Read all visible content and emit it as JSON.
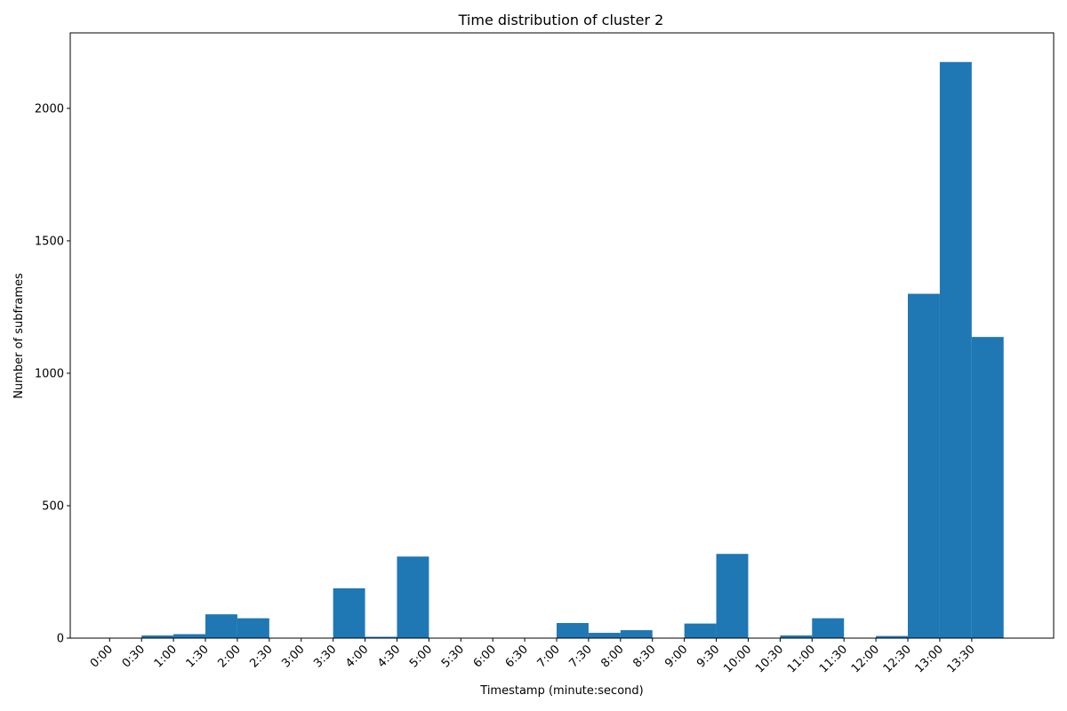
{
  "chart_data": {
    "type": "bar",
    "title": "Time distribution of cluster 2",
    "xlabel": "Timestamp (minute:second)",
    "ylabel": "Number of subframes",
    "x_tick_labels": [
      "0:00",
      "0:30",
      "1:00",
      "1:30",
      "2:00",
      "2:30",
      "3:00",
      "3:30",
      "4:00",
      "4:30",
      "5:00",
      "5:30",
      "6:00",
      "6:30",
      "7:00",
      "7:30",
      "8:00",
      "8:30",
      "9:00",
      "9:30",
      "10:00",
      "10:30",
      "11:00",
      "11:30",
      "12:00",
      "12:30",
      "13:00",
      "13:30"
    ],
    "x_tick_seconds": [
      0,
      30,
      60,
      90,
      120,
      150,
      180,
      210,
      240,
      270,
      300,
      330,
      360,
      390,
      420,
      450,
      480,
      510,
      540,
      570,
      600,
      630,
      660,
      690,
      720,
      750,
      780,
      810
    ],
    "bin_width_seconds": 30,
    "bins": [
      {
        "start": 0,
        "value": 0
      },
      {
        "start": 30,
        "value": 10
      },
      {
        "start": 60,
        "value": 15
      },
      {
        "start": 90,
        "value": 90
      },
      {
        "start": 120,
        "value": 75
      },
      {
        "start": 150,
        "value": 0
      },
      {
        "start": 180,
        "value": 0
      },
      {
        "start": 210,
        "value": 188
      },
      {
        "start": 240,
        "value": 5
      },
      {
        "start": 270,
        "value": 308
      },
      {
        "start": 300,
        "value": 0
      },
      {
        "start": 330,
        "value": 0
      },
      {
        "start": 360,
        "value": 0
      },
      {
        "start": 390,
        "value": 0
      },
      {
        "start": 420,
        "value": 57
      },
      {
        "start": 450,
        "value": 20
      },
      {
        "start": 480,
        "value": 30
      },
      {
        "start": 510,
        "value": 0
      },
      {
        "start": 540,
        "value": 55
      },
      {
        "start": 570,
        "value": 318
      },
      {
        "start": 600,
        "value": 0
      },
      {
        "start": 630,
        "value": 10
      },
      {
        "start": 660,
        "value": 75
      },
      {
        "start": 690,
        "value": 0
      },
      {
        "start": 720,
        "value": 8
      },
      {
        "start": 750,
        "value": 1300
      },
      {
        "start": 780,
        "value": 2175
      },
      {
        "start": 810,
        "value": 1137
      }
    ],
    "xlim": [
      -37,
      887
    ],
    "ylim": [
      0,
      2285
    ],
    "y_ticks": [
      0,
      500,
      1000,
      1500,
      2000
    ],
    "bar_color": "#1f77b4",
    "grid": false
  }
}
